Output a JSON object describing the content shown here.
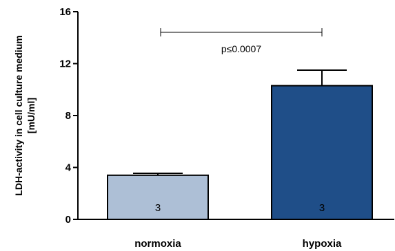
{
  "chart_data": {
    "type": "bar",
    "ylabel_lines": [
      "LDH-activity in cell culture medium",
      "[mU/ml]"
    ],
    "ylim": [
      0,
      16
    ],
    "yticks": [
      0,
      4,
      8,
      12,
      16
    ],
    "ytick_labels": [
      "0",
      "4",
      "8",
      "12",
      "16"
    ],
    "categories": [
      "normoxia",
      "hypoxia"
    ],
    "values": [
      3.4,
      10.3
    ],
    "errors": [
      0.15,
      1.2
    ],
    "n_labels": [
      "3",
      "3"
    ],
    "bar_colors": [
      "#adbfd6",
      "#1f4e88"
    ],
    "significance": {
      "label": "p≤0.0007",
      "from": 0,
      "to": 1,
      "y": 14.4
    },
    "grid": false,
    "legend": "none"
  }
}
